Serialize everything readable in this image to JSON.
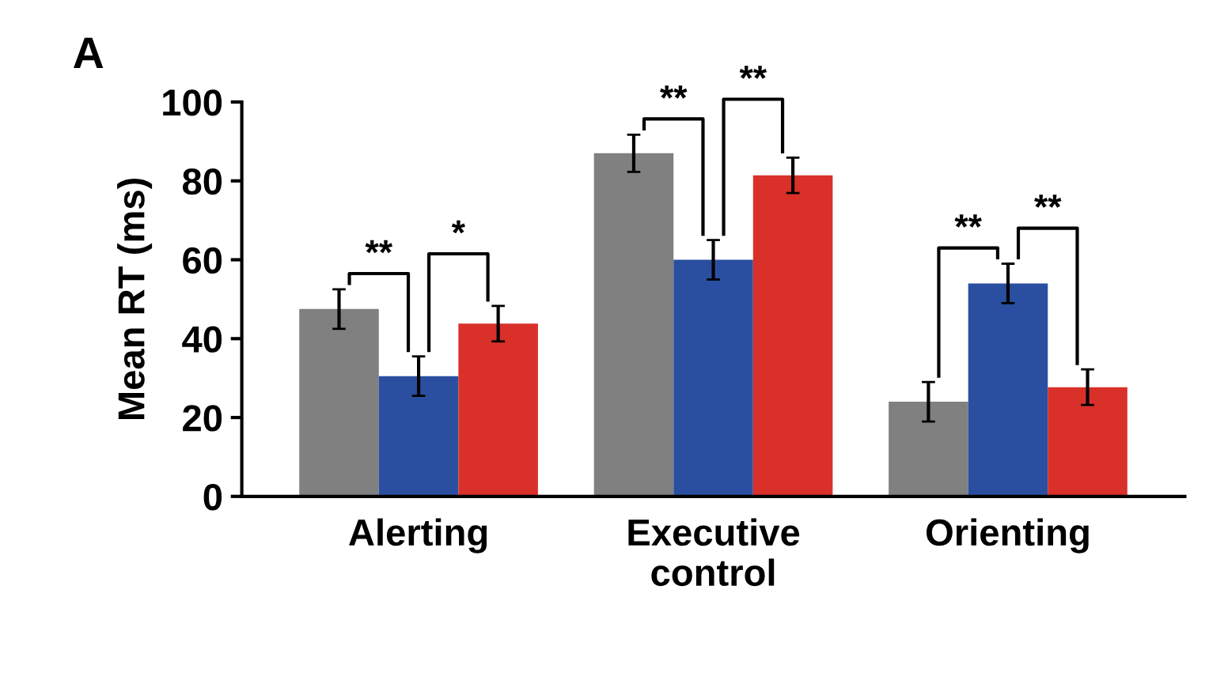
{
  "chart_data": {
    "type": "bar",
    "title": "A",
    "ylabel": "Mean RT (ms)",
    "categories": [
      "Alerting",
      "Executive\ncontrol",
      "Orienting"
    ],
    "series": [
      {
        "color": "#808080",
        "values": [
          47.5,
          87,
          24
        ],
        "errors": [
          5,
          4.7,
          5
        ]
      },
      {
        "color": "#2a4fa0",
        "values": [
          30.5,
          60,
          54
        ],
        "errors": [
          5,
          5,
          5
        ]
      },
      {
        "color": "#d9302a",
        "values": [
          43.8,
          81.4,
          27.7
        ],
        "errors": [
          4.5,
          4.5,
          4.5
        ]
      }
    ],
    "ylim": [
      0,
      100
    ],
    "yticks": [
      0,
      20,
      40,
      60,
      80,
      100
    ],
    "grid": false,
    "legend": false,
    "annotations": [
      "**",
      "*",
      "**",
      "**",
      "**",
      "**"
    ]
  }
}
